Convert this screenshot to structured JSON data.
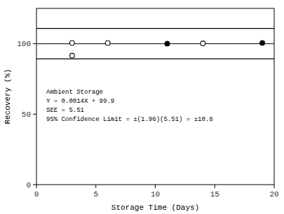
{
  "chart_data": {
    "type": "scatter",
    "xlabel": "Storage Time (Days)",
    "ylabel": "Recovery (%)",
    "xlim": [
      0,
      20
    ],
    "ylim": [
      0,
      125
    ],
    "xticks": [
      0,
      5,
      10,
      15,
      20
    ],
    "yticks": [
      0,
      50,
      100
    ],
    "grid": false,
    "color": "#000000",
    "series": [
      {
        "x": [
          3,
          6,
          14
        ],
        "values": [
          100.5,
          100.5,
          100.2
        ],
        "marker": "open",
        "color": "#000000"
      },
      {
        "x": [
          11,
          19
        ],
        "values": [
          100.0,
          100.5
        ],
        "marker": "filled",
        "color": "#000000"
      },
      {
        "x": [
          3
        ],
        "values": [
          91.5
        ],
        "marker": "open",
        "color": "#000000"
      }
    ],
    "regression": {
      "slope": 0.0014,
      "intercept": 99.9
    },
    "hlines": [
      110.8,
      89.2
    ],
    "annotations": [
      "Ambient Storage",
      "Y = 0.0014X + 99.9",
      "SEE = 5.51",
      "95% Confidence Limit = ±(1.96)(5.51) = ±10.8"
    ]
  }
}
